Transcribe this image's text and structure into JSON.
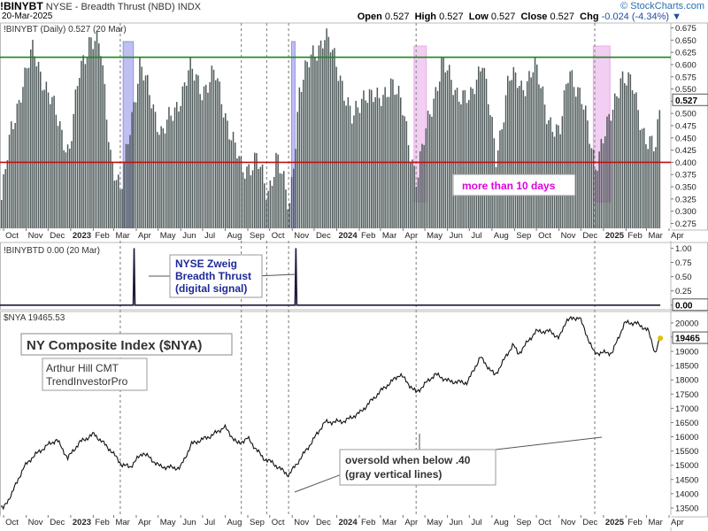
{
  "header": {
    "symbol": "!BINYBT",
    "title": "NYSE - Breadth Thrust (NBD)",
    "exchange": "INDX",
    "brand": "© StockCharts.com",
    "date": "20-Mar-2025",
    "open_label": "Open",
    "open": "0.527",
    "high_label": "High",
    "high": "0.527",
    "low_label": "Low",
    "low": "0.527",
    "close_label": "Close",
    "close": "0.527",
    "chg_label": "Chg",
    "chg": "-0.024 (-4.34%)"
  },
  "colors": {
    "bars": "#4f5a5a",
    "green_line": "#1a8a1a",
    "red_line": "#c01010",
    "blue_band": "#8a8ae8",
    "pink_band": "#e8a6e8",
    "dashed": "#8f8f8f",
    "signal": "#1a1a3a",
    "magenta_text": "#e000e0",
    "navy_text": "#1c2a9a"
  },
  "chart_data": [
    {
      "type": "bar",
      "name": "breadth_thrust",
      "legend": "!BINYBT (Daily) 0.527 (20 Mar)",
      "last_value_label": "0.527",
      "y_ticks": [
        "0.275",
        "0.300",
        "0.325",
        "0.350",
        "0.375",
        "0.400",
        "0.425",
        "0.450",
        "0.475",
        "0.500",
        "0.525",
        "0.550",
        "0.575",
        "0.600",
        "0.625",
        "0.650",
        "0.675"
      ],
      "ylim": [
        0.265,
        0.685
      ],
      "xlim": [
        "2022-09-26",
        "2025-04-01"
      ],
      "hlines": [
        {
          "value": 0.615,
          "color": "green"
        },
        {
          "value": 0.4,
          "color": "red"
        }
      ],
      "shaded_ranges": [
        {
          "start": "2023-03-14",
          "end": "2023-03-28",
          "color": "blue"
        },
        {
          "start": "2023-10-31",
          "end": "2023-11-03",
          "color": "blue"
        },
        {
          "start": "2024-04-16",
          "end": "2024-05-03",
          "color": "pink"
        },
        {
          "start": "2024-12-18",
          "end": "2025-01-10",
          "color": "pink"
        }
      ],
      "annotation": "more than 10 days",
      "keypoints": [
        [
          "2022-09-26",
          0.31
        ],
        [
          "2022-10-10",
          0.46
        ],
        [
          "2022-10-24",
          0.55
        ],
        [
          "2022-11-10",
          0.63
        ],
        [
          "2022-11-28",
          0.55
        ],
        [
          "2022-12-15",
          0.48
        ],
        [
          "2022-12-29",
          0.42
        ],
        [
          "2023-01-12",
          0.58
        ],
        [
          "2023-01-27",
          0.66
        ],
        [
          "2023-02-10",
          0.63
        ],
        [
          "2023-02-24",
          0.42
        ],
        [
          "2023-03-10",
          0.33
        ],
        [
          "2023-03-22",
          0.47
        ],
        [
          "2023-04-05",
          0.6
        ],
        [
          "2023-04-20",
          0.53
        ],
        [
          "2023-05-05",
          0.46
        ],
        [
          "2023-05-22",
          0.5
        ],
        [
          "2023-06-12",
          0.59
        ],
        [
          "2023-06-30",
          0.55
        ],
        [
          "2023-07-17",
          0.58
        ],
        [
          "2023-08-04",
          0.48
        ],
        [
          "2023-08-23",
          0.38
        ],
        [
          "2023-09-12",
          0.41
        ],
        [
          "2023-09-27",
          0.33
        ],
        [
          "2023-10-10",
          0.42
        ],
        [
          "2023-10-27",
          0.3
        ],
        [
          "2023-11-10",
          0.55
        ],
        [
          "2023-11-28",
          0.62
        ],
        [
          "2023-12-15",
          0.66
        ],
        [
          "2024-01-05",
          0.58
        ],
        [
          "2024-01-22",
          0.48
        ],
        [
          "2024-02-08",
          0.55
        ],
        [
          "2024-02-27",
          0.52
        ],
        [
          "2024-03-15",
          0.57
        ],
        [
          "2024-04-01",
          0.5
        ],
        [
          "2024-04-19",
          0.36
        ],
        [
          "2024-05-06",
          0.5
        ],
        [
          "2024-05-24",
          0.6
        ],
        [
          "2024-06-12",
          0.55
        ],
        [
          "2024-07-01",
          0.52
        ],
        [
          "2024-07-18",
          0.62
        ],
        [
          "2024-08-06",
          0.4
        ],
        [
          "2024-08-23",
          0.58
        ],
        [
          "2024-09-10",
          0.55
        ],
        [
          "2024-09-27",
          0.6
        ],
        [
          "2024-10-15",
          0.5
        ],
        [
          "2024-11-01",
          0.45
        ],
        [
          "2024-11-14",
          0.6
        ],
        [
          "2024-12-02",
          0.52
        ],
        [
          "2024-12-20",
          0.4
        ],
        [
          "2025-01-08",
          0.48
        ],
        [
          "2025-01-24",
          0.58
        ],
        [
          "2025-02-10",
          0.55
        ],
        [
          "2025-02-27",
          0.45
        ],
        [
          "2025-03-12",
          0.42
        ],
        [
          "2025-03-20",
          0.527
        ]
      ]
    },
    {
      "type": "line",
      "name": "zweig_signal",
      "legend": "!BINYBTD 0.00 (20 Mar)",
      "last_value_label": "0.00",
      "y_ticks": [
        "0.00",
        "0.25",
        "0.50",
        "0.75",
        "1.00"
      ],
      "ylim": [
        -0.05,
        1.1
      ],
      "signals": [
        "2023-03-29",
        "2023-11-06"
      ],
      "annotation": [
        "NYSE Zweig",
        "Breadth Thrust",
        "(digital signal)"
      ]
    },
    {
      "type": "line",
      "name": "nya",
      "legend": "$NYA 19465.53",
      "last_value_label": "19465",
      "y_ticks": [
        "13500",
        "14000",
        "14500",
        "15000",
        "15500",
        "16000",
        "16500",
        "17000",
        "17500",
        "18000",
        "18500",
        "19000",
        "19500",
        "20000"
      ],
      "ylim": [
        13250,
        20400
      ],
      "title": "NY Composite Index ($NYA)",
      "author": [
        "Arthur Hill CMT",
        "TrendInvestorPro"
      ],
      "annotation": [
        "oversold when below .40",
        "(gray vertical lines)"
      ],
      "keypoints": [
        [
          "2022-09-26",
          13600
        ],
        [
          "2022-09-30",
          13450
        ],
        [
          "2022-10-13",
          14050
        ],
        [
          "2022-10-28",
          14900
        ],
        [
          "2022-11-10",
          15300
        ],
        [
          "2022-11-30",
          15700
        ],
        [
          "2022-12-13",
          15900
        ],
        [
          "2022-12-28",
          15250
        ],
        [
          "2023-01-13",
          15800
        ],
        [
          "2023-02-02",
          16100
        ],
        [
          "2023-02-24",
          15550
        ],
        [
          "2023-03-13",
          15000
        ],
        [
          "2023-03-24",
          14950
        ],
        [
          "2023-04-10",
          15450
        ],
        [
          "2023-05-04",
          14950
        ],
        [
          "2023-05-31",
          14900
        ],
        [
          "2023-06-16",
          15750
        ],
        [
          "2023-07-14",
          16050
        ],
        [
          "2023-07-31",
          16350
        ],
        [
          "2023-08-18",
          15750
        ],
        [
          "2023-09-01",
          15950
        ],
        [
          "2023-09-22",
          15250
        ],
        [
          "2023-10-04",
          15100
        ],
        [
          "2023-10-27",
          14650
        ],
        [
          "2023-11-14",
          15300
        ],
        [
          "2023-11-30",
          15900
        ],
        [
          "2023-12-15",
          16500
        ],
        [
          "2024-01-12",
          16550
        ],
        [
          "2024-02-02",
          16850
        ],
        [
          "2024-03-01",
          17600
        ],
        [
          "2024-03-28",
          18200
        ],
        [
          "2024-04-19",
          17550
        ],
        [
          "2024-05-15",
          18200
        ],
        [
          "2024-06-03",
          17950
        ],
        [
          "2024-06-28",
          17900
        ],
        [
          "2024-07-16",
          18800
        ],
        [
          "2024-08-05",
          18150
        ],
        [
          "2024-08-30",
          19250
        ],
        [
          "2024-09-06",
          18900
        ],
        [
          "2024-09-30",
          19700
        ],
        [
          "2024-10-21",
          19700
        ],
        [
          "2024-11-01",
          19450
        ],
        [
          "2024-11-11",
          20100
        ],
        [
          "2024-11-29",
          20200
        ],
        [
          "2024-12-19",
          18950
        ],
        [
          "2025-01-13",
          18950
        ],
        [
          "2025-01-30",
          20000
        ],
        [
          "2025-02-14",
          20000
        ],
        [
          "2025-03-03",
          19750
        ],
        [
          "2025-03-13",
          18950
        ],
        [
          "2025-03-20",
          19465
        ]
      ]
    }
  ],
  "x_axis_labels": [
    {
      "text": "Oct",
      "date": "2022-10-01"
    },
    {
      "text": "Nov",
      "date": "2022-11-01"
    },
    {
      "text": "Dec",
      "date": "2022-12-01"
    },
    {
      "text": "2023",
      "date": "2023-01-01",
      "bold": true
    },
    {
      "text": "Feb",
      "date": "2023-02-01"
    },
    {
      "text": "Mar",
      "date": "2023-03-01"
    },
    {
      "text": "Apr",
      "date": "2023-04-01"
    },
    {
      "text": "May",
      "date": "2023-05-01"
    },
    {
      "text": "Jun",
      "date": "2023-06-01"
    },
    {
      "text": "Jul",
      "date": "2023-07-01"
    },
    {
      "text": "Aug",
      "date": "2023-08-01"
    },
    {
      "text": "Sep",
      "date": "2023-09-01"
    },
    {
      "text": "Oct",
      "date": "2023-10-01"
    },
    {
      "text": "Nov",
      "date": "2023-11-01"
    },
    {
      "text": "Dec",
      "date": "2023-12-01"
    },
    {
      "text": "2024",
      "date": "2024-01-01",
      "bold": true
    },
    {
      "text": "Feb",
      "date": "2024-02-01"
    },
    {
      "text": "Mar",
      "date": "2024-03-01"
    },
    {
      "text": "Apr",
      "date": "2024-04-01"
    },
    {
      "text": "May",
      "date": "2024-05-01"
    },
    {
      "text": "Jun",
      "date": "2024-06-01"
    },
    {
      "text": "Jul",
      "date": "2024-07-01"
    },
    {
      "text": "Aug",
      "date": "2024-08-01"
    },
    {
      "text": "Sep",
      "date": "2024-09-01"
    },
    {
      "text": "Oct",
      "date": "2024-10-01"
    },
    {
      "text": "Nov",
      "date": "2024-11-01"
    },
    {
      "text": "Dec",
      "date": "2024-12-01"
    },
    {
      "text": "2025",
      "date": "2025-01-01",
      "bold": true
    },
    {
      "text": "Feb",
      "date": "2025-02-01"
    },
    {
      "text": "Mar",
      "date": "2025-03-01"
    },
    {
      "text": "Apr",
      "date": "2025-04-01"
    }
  ],
  "oversold_dates": [
    "2023-03-10",
    "2023-08-23",
    "2023-09-27",
    "2023-10-27",
    "2024-04-19",
    "2024-12-20"
  ]
}
